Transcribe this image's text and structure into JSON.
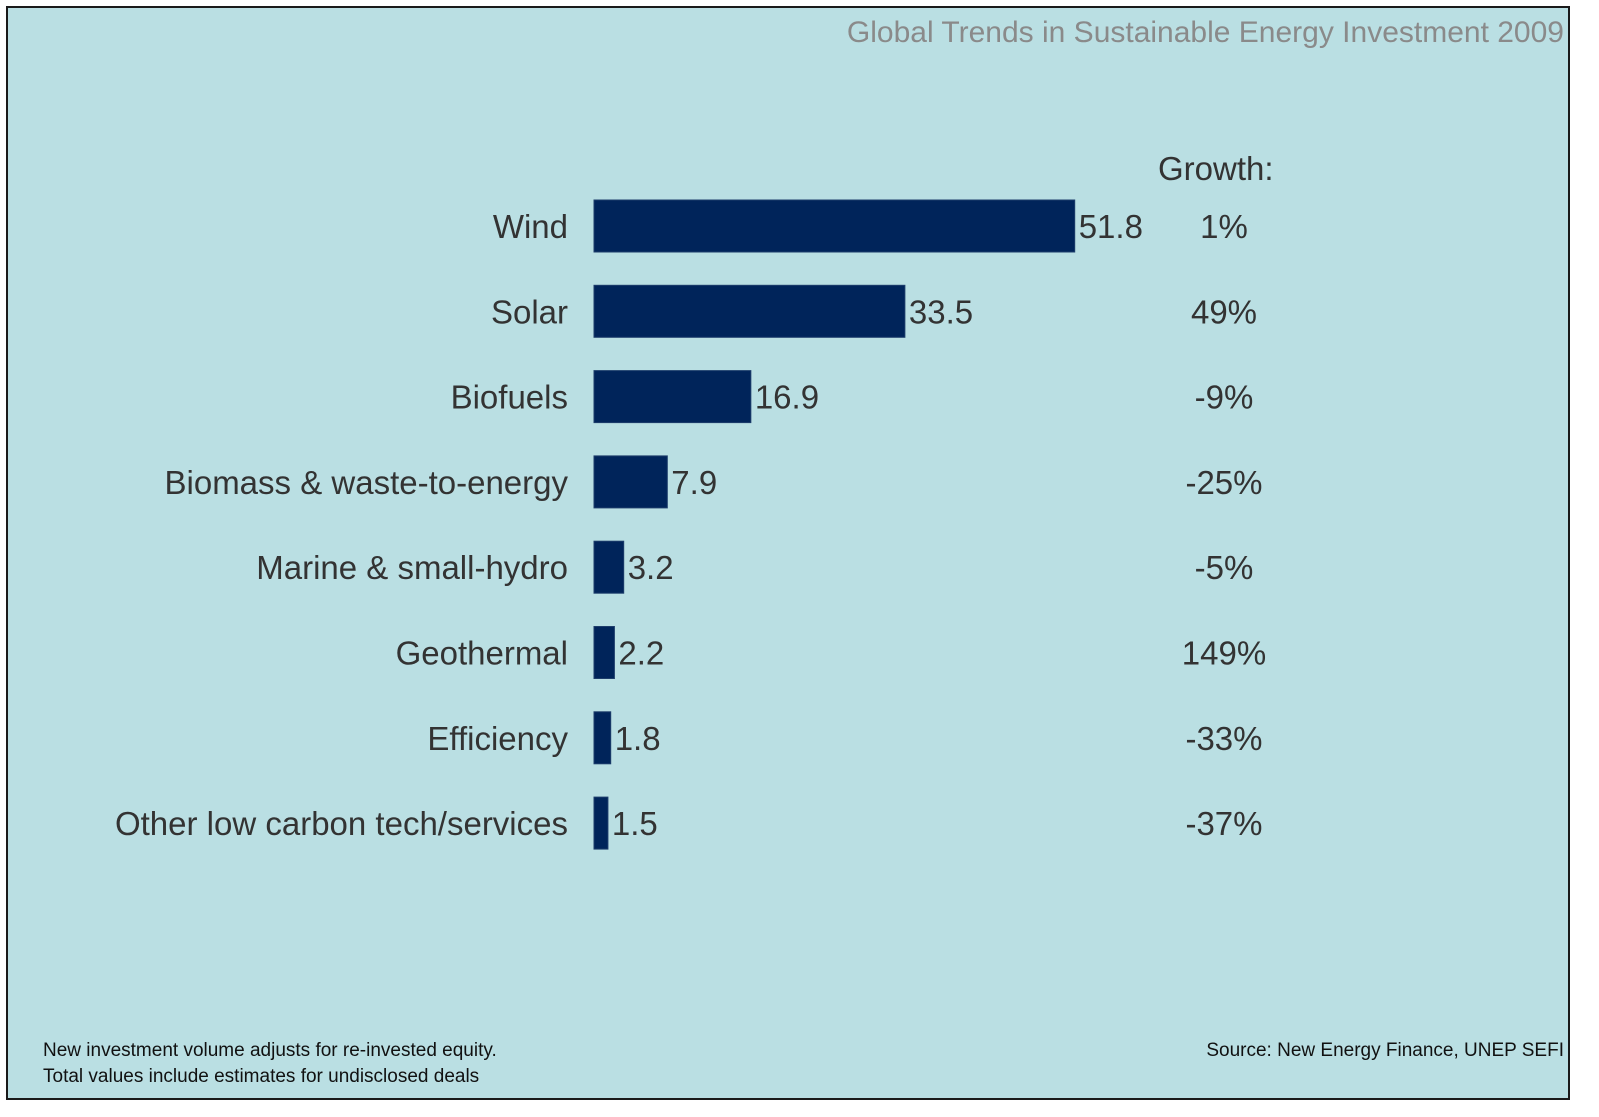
{
  "header": {
    "title": "Global Trends in Sustainable Energy Investment 2009"
  },
  "growth_heading": "Growth:",
  "footnotes": [
    "New investment volume adjusts for re-invested equity.",
    "Total values include estimates for undisclosed deals"
  ],
  "source": "Source: New Energy Finance, UNEP SEFI",
  "colors": {
    "background": "#badfe3",
    "bar": "#00245a",
    "text": "#333333"
  },
  "chart_data": {
    "type": "bar",
    "orientation": "horizontal",
    "categories": [
      "Wind",
      "Solar",
      "Biofuels",
      "Biomass & waste-to-energy",
      "Marine & small-hydro",
      "Geothermal",
      "Efficiency",
      "Other low carbon tech/services"
    ],
    "values": [
      51.8,
      33.5,
      16.9,
      7.9,
      3.2,
      2.2,
      1.8,
      1.5
    ],
    "value_labels": [
      "51.8",
      "33.5",
      "16.9",
      "7.9",
      "3.2",
      "2.2",
      "1.8",
      "1.5"
    ],
    "growth": [
      "1%",
      "49%",
      "-9%",
      "-25%",
      "-5%",
      "149%",
      "-33%",
      "-37%"
    ],
    "title": "Global Trends in Sustainable Energy Investment 2009",
    "xlabel": "",
    "ylabel": "",
    "grid": false
  }
}
